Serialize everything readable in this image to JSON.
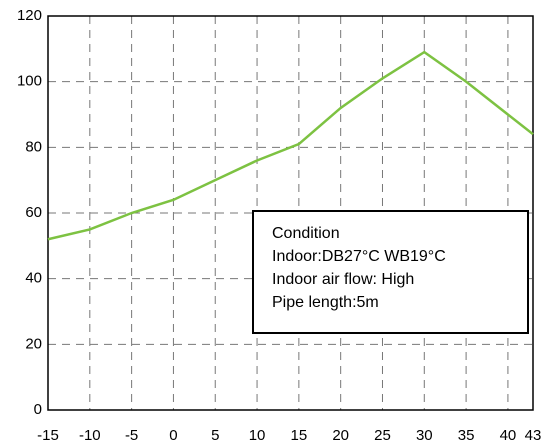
{
  "chart_data": {
    "type": "line",
    "x": [
      -15,
      -10,
      -5,
      0,
      5,
      10,
      15,
      20,
      25,
      30,
      35,
      43
    ],
    "series": [
      {
        "color": "#7dc242",
        "values": [
          52,
          55,
          60,
          64,
          70,
          76,
          81,
          92,
          101,
          109,
          100,
          84
        ]
      }
    ],
    "xlim": [
      -15,
      43
    ],
    "xticks": [
      -15,
      -10,
      -5,
      0,
      5,
      10,
      15,
      20,
      25,
      30,
      35,
      40,
      43
    ],
    "ylim": [
      0,
      120
    ],
    "yticks": [
      0,
      20,
      40,
      60,
      80,
      100,
      120
    ],
    "grid": true,
    "annotation": [
      "Condition",
      "Indoor:DB27°C WB19°C",
      "Indoor air flow: High",
      "Pipe length:5m"
    ]
  }
}
